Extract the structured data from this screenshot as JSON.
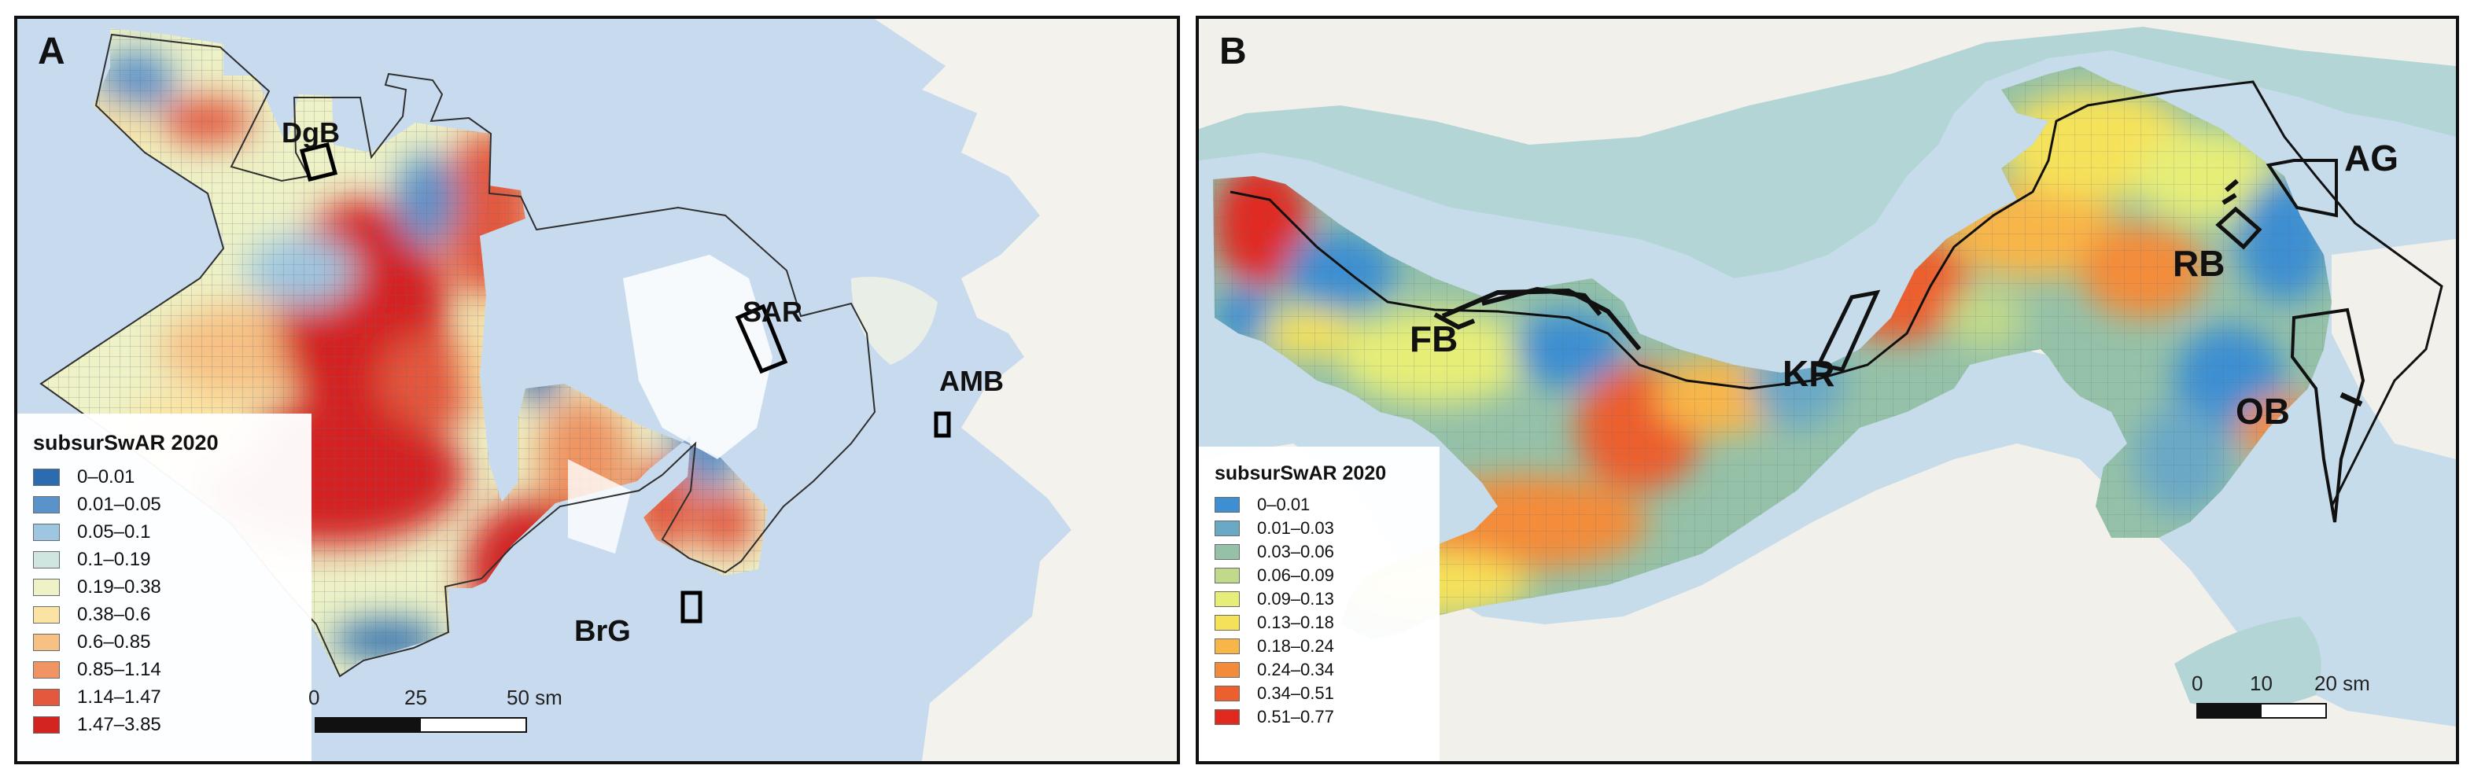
{
  "panels": {
    "a": {
      "letter": "A",
      "labels": {
        "dgb": "DgB",
        "sar": "SAR",
        "amb": "AMB",
        "brg": "BrG"
      },
      "legend": {
        "title": "subsurSwAR 2020",
        "classes": [
          {
            "label": "0–0.01",
            "color": "#2b6cb0"
          },
          {
            "label": "0.01–0.05",
            "color": "#5b92c9"
          },
          {
            "label": "0.05–0.1",
            "color": "#9ec6e0"
          },
          {
            "label": "0.1–0.19",
            "color": "#cfe5e0"
          },
          {
            "label": "0.19–0.38",
            "color": "#eef2c6"
          },
          {
            "label": "0.38–0.6",
            "color": "#fbe4a3"
          },
          {
            "label": "0.6–0.85",
            "color": "#f7c183"
          },
          {
            "label": "0.85–1.14",
            "color": "#ef9462"
          },
          {
            "label": "1.14–1.47",
            "color": "#e4593e"
          },
          {
            "label": "1.47–3.85",
            "color": "#d42420"
          }
        ]
      },
      "scale": {
        "ticks": [
          "0",
          "25",
          "50 sm"
        ]
      }
    },
    "b": {
      "letter": "B",
      "labels": {
        "fb": "FB",
        "kr": "KR",
        "rb": "RB",
        "ag": "AG",
        "ob": "OB"
      },
      "legend": {
        "title": "subsurSwAR 2020",
        "classes": [
          {
            "label": "0–0.01",
            "color": "#3d8fd1"
          },
          {
            "label": "0.01–0.03",
            "color": "#6aa8c6"
          },
          {
            "label": "0.03–0.06",
            "color": "#95c1a8"
          },
          {
            "label": "0.06–0.09",
            "color": "#c0d98a"
          },
          {
            "label": "0.09–0.13",
            "color": "#e6ee78"
          },
          {
            "label": "0.13–0.18",
            "color": "#f6e25a"
          },
          {
            "label": "0.18–0.24",
            "color": "#f8b648"
          },
          {
            "label": "0.24–0.34",
            "color": "#f38c3a"
          },
          {
            "label": "0.34–0.51",
            "color": "#ec5f2e"
          },
          {
            "label": "0.51–0.77",
            "color": "#e02a21"
          }
        ]
      },
      "scale": {
        "ticks": [
          "0",
          "10",
          "20 sm"
        ]
      }
    }
  }
}
